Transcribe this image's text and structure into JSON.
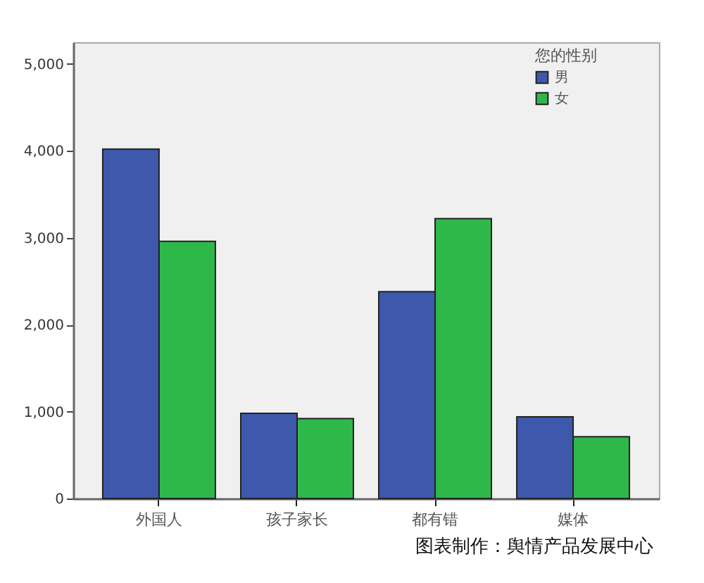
{
  "chart_data": {
    "type": "bar",
    "categories": [
      "外国人",
      "孩子家长",
      "都有错",
      "媒体"
    ],
    "series": [
      {
        "name": "男",
        "color": "#3e58ac",
        "values": [
          4020,
          980,
          2380,
          940
        ]
      },
      {
        "name": "女",
        "color": "#2fb84a",
        "values": [
          2960,
          920,
          3220,
          710
        ]
      }
    ],
    "legend_title": "您的性别",
    "legend": "top right",
    "ylim": [
      0,
      5250
    ],
    "yticks": [
      0,
      {
        "value": 1000,
        "label": "1,000"
      },
      {
        "value": 2000,
        "label": "2,000"
      },
      {
        "value": 3000,
        "label": "3,000"
      },
      {
        "value": 4000,
        "label": "4,000"
      },
      {
        "value": 5000,
        "label": "5,000"
      }
    ],
    "grid": false,
    "annotations": [
      "图表制作：舆情产品发展中心"
    ]
  }
}
